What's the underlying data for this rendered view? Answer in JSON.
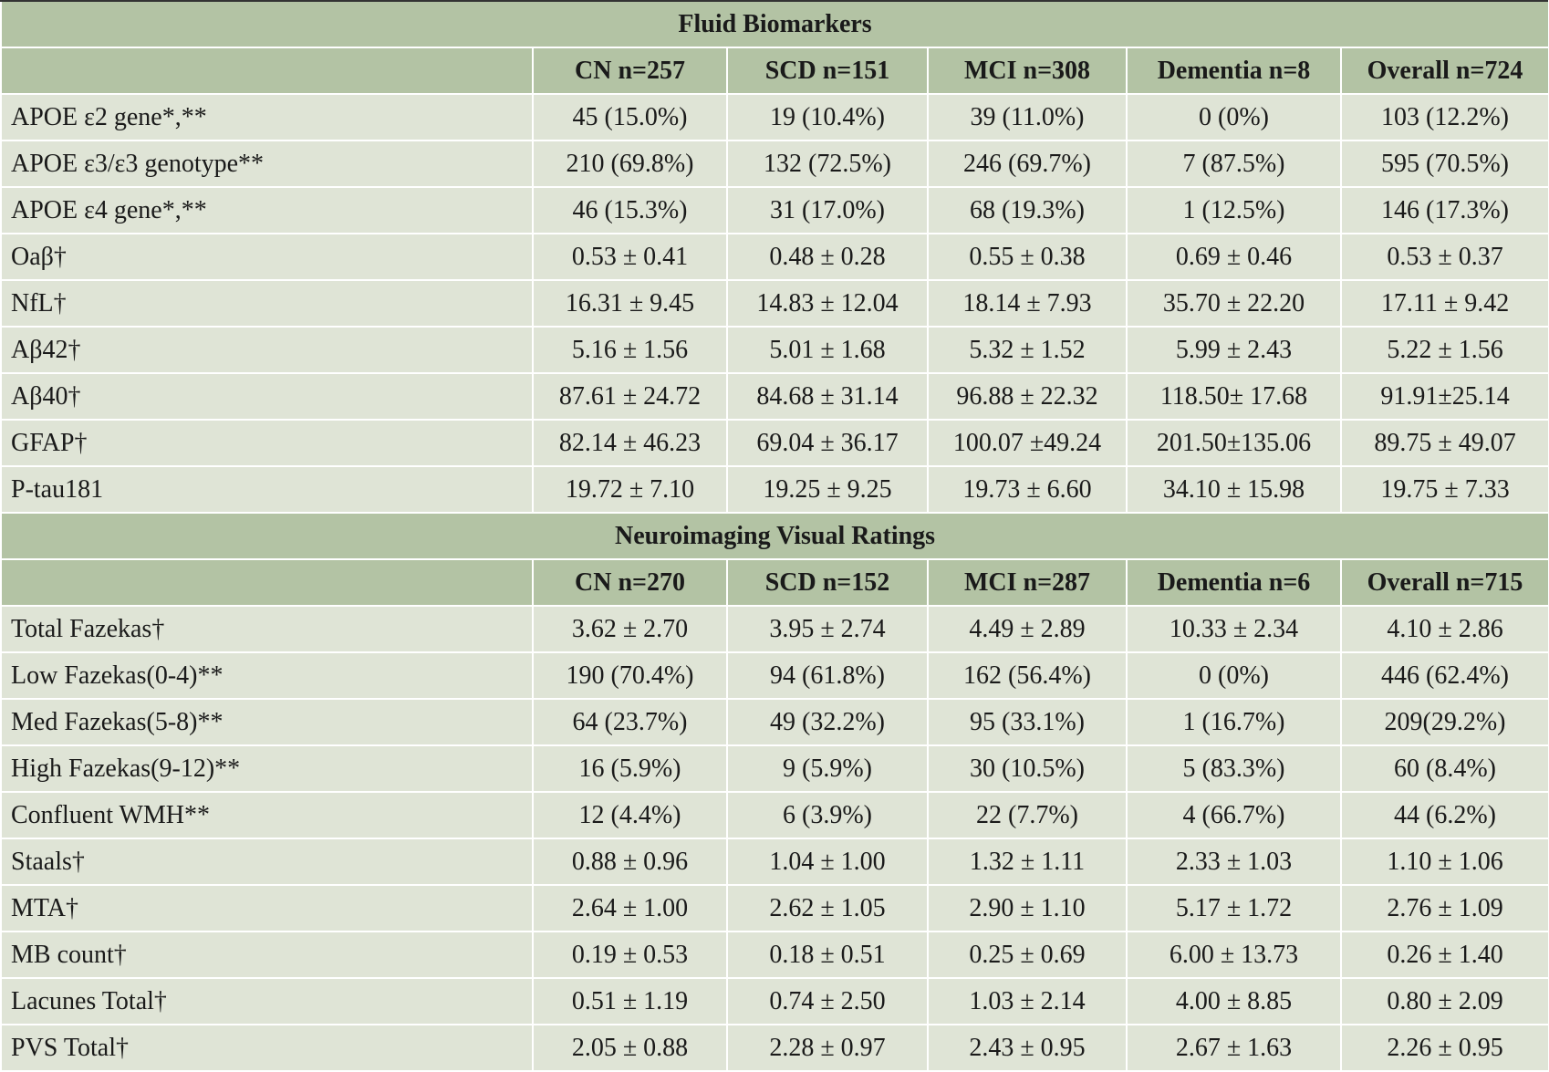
{
  "sections": [
    {
      "title": "Fluid Biomarkers",
      "columns": [
        "",
        "CN n=257",
        "SCD n=151",
        "MCI n=308",
        "Dementia n=8",
        "Overall n=724"
      ],
      "rows": [
        [
          "APOE ε2 gene*,**",
          "45 (15.0%)",
          "19 (10.4%)",
          "39 (11.0%)",
          "0 (0%)",
          "103 (12.2%)"
        ],
        [
          "APOE ε3/ε3 genotype**",
          "210 (69.8%)",
          "132 (72.5%)",
          "246 (69.7%)",
          "7 (87.5%)",
          "595 (70.5%)"
        ],
        [
          "APOE ε4 gene*,**",
          "46 (15.3%)",
          "31 (17.0%)",
          "68 (19.3%)",
          "1 (12.5%)",
          "146 (17.3%)"
        ],
        [
          "Oaβ†",
          "0.53 ± 0.41",
          "0.48 ± 0.28",
          "0.55 ± 0.38",
          "0.69 ± 0.46",
          "0.53 ± 0.37"
        ],
        [
          "NfL†",
          "16.31 ± 9.45",
          "14.83 ± 12.04",
          "18.14 ± 7.93",
          "35.70 ± 22.20",
          "17.11 ± 9.42"
        ],
        [
          "Aβ42†",
          "5.16 ± 1.56",
          "5.01 ± 1.68",
          "5.32 ± 1.52",
          "5.99 ± 2.43",
          "5.22 ± 1.56"
        ],
        [
          "Aβ40†",
          "87.61 ± 24.72",
          "84.68 ± 31.14",
          "96.88 ± 22.32",
          "118.50± 17.68",
          "91.91±25.14"
        ],
        [
          "GFAP†",
          "82.14 ± 46.23",
          "69.04 ± 36.17",
          "100.07 ±49.24",
          "201.50±135.06",
          "89.75 ± 49.07"
        ],
        [
          "P-tau181",
          "19.72 ± 7.10",
          "19.25 ± 9.25",
          "19.73 ± 6.60",
          "34.10 ± 15.98",
          "19.75 ± 7.33"
        ]
      ]
    },
    {
      "title": "Neuroimaging Visual Ratings",
      "columns": [
        "",
        "CN n=270",
        "SCD n=152",
        "MCI n=287",
        "Dementia n=6",
        "Overall n=715"
      ],
      "rows": [
        [
          "Total Fazekas†",
          "3.62 ± 2.70",
          "3.95 ± 2.74",
          "4.49 ± 2.89",
          "10.33 ± 2.34",
          "4.10 ± 2.86"
        ],
        [
          "Low Fazekas(0-4)**",
          "190 (70.4%)",
          "94 (61.8%)",
          "162 (56.4%)",
          "0 (0%)",
          "446 (62.4%)"
        ],
        [
          "Med Fazekas(5-8)**",
          "64 (23.7%)",
          "49 (32.2%)",
          "95 (33.1%)",
          "1 (16.7%)",
          "209(29.2%)"
        ],
        [
          "High Fazekas(9-12)**",
          "16 (5.9%)",
          "9 (5.9%)",
          "30 (10.5%)",
          "5 (83.3%)",
          "60 (8.4%)"
        ],
        [
          "Confluent WMH**",
          "12 (4.4%)",
          "6 (3.9%)",
          "22 (7.7%)",
          "4 (66.7%)",
          "44 (6.2%)"
        ],
        [
          "Staals†",
          "0.88 ± 0.96",
          "1.04 ± 1.00",
          "1.32 ± 1.11",
          "2.33 ± 1.03",
          "1.10 ± 1.06"
        ],
        [
          "MTA†",
          "2.64 ± 1.00",
          "2.62 ± 1.05",
          "2.90 ± 1.10",
          "5.17 ± 1.72",
          "2.76 ± 1.09"
        ],
        [
          "MB count†",
          "0.19 ± 0.53",
          "0.18 ± 0.51",
          "0.25 ± 0.69",
          "6.00 ± 13.73",
          "0.26 ± 1.40"
        ],
        [
          "Lacunes Total†",
          "0.51 ± 1.19",
          "0.74 ± 2.50",
          "1.03 ± 2.14",
          "4.00 ± 8.85",
          "0.80 ± 2.09"
        ],
        [
          "PVS Total†",
          "2.05 ± 0.88",
          "2.28 ± 0.97",
          "2.43 ± 0.95",
          "2.67 ± 1.63",
          "2.26 ± 0.95"
        ]
      ]
    }
  ]
}
